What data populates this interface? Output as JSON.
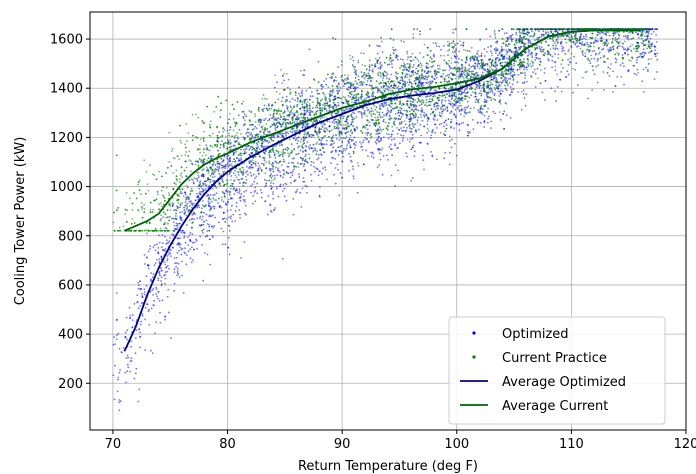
{
  "colors": {
    "optimized": "#0000ff",
    "current": "#008000",
    "avg_optimized": "#00008b",
    "avg_current": "#006400",
    "grid": "#b0b0b0",
    "legend_border": "#cccccc"
  },
  "chart_data": {
    "type": "scatter",
    "title": "",
    "xlabel": "Return Temperature (deg F)",
    "ylabel": "Cooling Tower Power (kW)",
    "xlim": [
      68,
      120
    ],
    "ylim": [
      10,
      1710
    ],
    "xticks": [
      70,
      80,
      90,
      100,
      110,
      120
    ],
    "yticks": [
      200,
      400,
      600,
      800,
      1000,
      1200,
      1400,
      1600
    ],
    "grid": true,
    "legend_position": "lower-right",
    "series": [
      {
        "name": "Optimized",
        "kind": "scatter",
        "color": "#0000ff",
        "x_range": [
          70,
          117.5
        ],
        "y_range": [
          90,
          1640
        ],
        "approx_points": 4000
      },
      {
        "name": "Current Practice",
        "kind": "scatter",
        "color": "#008000",
        "x_range": [
          70,
          117
        ],
        "y_range": [
          820,
          1640
        ],
        "approx_points": 3500
      },
      {
        "name": "Average Optimized",
        "kind": "line",
        "color": "#00008b",
        "x": [
          71,
          72,
          73,
          74,
          75,
          76,
          77,
          78,
          79,
          80,
          82,
          84,
          86,
          88,
          90,
          92,
          94,
          96,
          98,
          100,
          102,
          104,
          106,
          108,
          110,
          112,
          114,
          116
        ],
        "y": [
          330,
          430,
          560,
          670,
          760,
          840,
          910,
          970,
          1020,
          1060,
          1120,
          1170,
          1215,
          1260,
          1295,
          1330,
          1355,
          1370,
          1380,
          1395,
          1430,
          1480,
          1560,
          1610,
          1630,
          1635,
          1635,
          1635
        ]
      },
      {
        "name": "Average Current",
        "kind": "line",
        "color": "#006400",
        "x": [
          71,
          72,
          73,
          74,
          75,
          76,
          77,
          78,
          79,
          80,
          82,
          84,
          86,
          88,
          90,
          92,
          94,
          96,
          98,
          100,
          102,
          104,
          106,
          108,
          110,
          112,
          114,
          116
        ],
        "y": [
          820,
          840,
          860,
          890,
          950,
          1010,
          1055,
          1090,
          1115,
          1135,
          1180,
          1215,
          1250,
          1285,
          1320,
          1345,
          1375,
          1395,
          1405,
          1420,
          1440,
          1480,
          1560,
          1610,
          1630,
          1635,
          1635,
          1635
        ]
      }
    ]
  }
}
